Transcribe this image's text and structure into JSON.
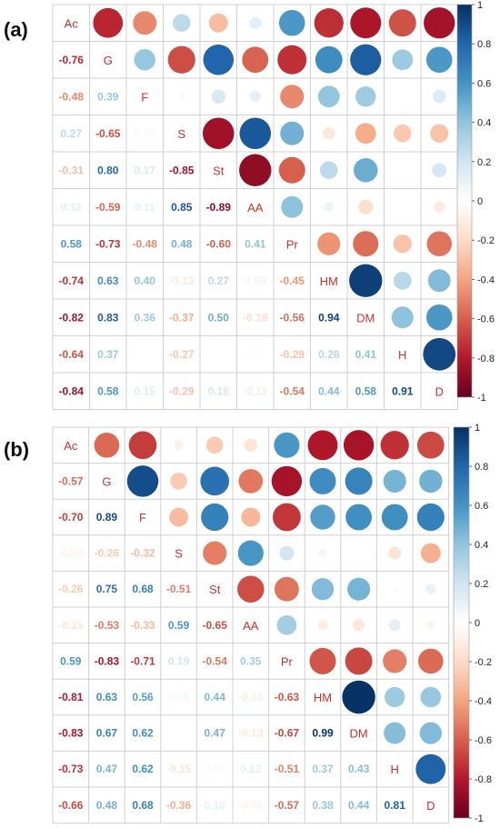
{
  "chart_data": [
    {
      "type": "heatmap",
      "panel_label": "(a)",
      "variables": [
        "Ac",
        "G",
        "F",
        "S",
        "St",
        "AA",
        "Pr",
        "HM",
        "DM",
        "H",
        "D"
      ],
      "lower_labels": [
        [
          "-0.76"
        ],
        [
          "-0.48",
          "0.39"
        ],
        [
          "0.27",
          "-0.65",
          "0.04"
        ],
        [
          "-0.31",
          "0.80",
          "0.17",
          "-0.85"
        ],
        [
          "0.12",
          "-0.59",
          "0.11",
          "0.85",
          "-0.89"
        ],
        [
          "0.58",
          "-0.73",
          "-0.48",
          "0.48",
          "-0.60",
          "0.41"
        ],
        [
          "-0.74",
          "0.63",
          "0.40",
          "-0.13",
          "0.27",
          "0.08",
          "-0.45"
        ],
        [
          "-0.82",
          "0.83",
          "0.36",
          "-0.37",
          "0.50",
          "-0.18",
          "-0.56",
          "0.94"
        ],
        [
          "-0.64",
          "0.37",
          "",
          "-0.27",
          "",
          "-0.01",
          "-0.29",
          "0.28",
          "0.41"
        ],
        [
          "-0.84",
          "0.58",
          "0.15",
          "-0.29",
          "0.18",
          "-0.11",
          "-0.54",
          "0.44",
          "0.58",
          "0.91"
        ]
      ],
      "upper_values": [
        [
          null,
          -0.76,
          -0.48,
          0.27,
          -0.31,
          0.12,
          0.58,
          -0.74,
          -0.82,
          -0.64,
          -0.84
        ],
        [
          null,
          null,
          0.39,
          -0.65,
          0.8,
          -0.59,
          -0.73,
          0.63,
          0.83,
          0.37,
          0.58
        ],
        [
          null,
          null,
          null,
          0.04,
          0.17,
          0.11,
          -0.48,
          0.4,
          0.36,
          0.0,
          0.15
        ],
        [
          null,
          null,
          null,
          null,
          -0.85,
          0.85,
          0.48,
          -0.13,
          -0.37,
          -0.27,
          -0.29
        ],
        [
          null,
          null,
          null,
          null,
          null,
          -0.89,
          -0.6,
          0.27,
          0.5,
          0.0,
          0.18
        ],
        [
          null,
          null,
          null,
          null,
          null,
          null,
          0.41,
          0.08,
          -0.18,
          -0.01,
          -0.11
        ],
        [
          null,
          null,
          null,
          null,
          null,
          null,
          null,
          -0.45,
          -0.56,
          -0.29,
          -0.54
        ],
        [
          null,
          null,
          null,
          null,
          null,
          null,
          null,
          null,
          0.94,
          0.28,
          0.44
        ],
        [
          null,
          null,
          null,
          null,
          null,
          null,
          null,
          null,
          null,
          0.41,
          0.58
        ],
        [
          null,
          null,
          null,
          null,
          null,
          null,
          null,
          null,
          null,
          null,
          0.91
        ]
      ],
      "colorbar_ticks": [
        "1",
        "0.8",
        "0.6",
        "0.4",
        "0.2",
        "0",
        "-0.2",
        "-0.4",
        "-0.6",
        "-0.8",
        "-1"
      ],
      "value_range": [
        -1,
        1
      ]
    },
    {
      "type": "heatmap",
      "panel_label": "(b)",
      "variables": [
        "Ac",
        "G",
        "F",
        "S",
        "St",
        "AA",
        "Pr",
        "HM",
        "DM",
        "H",
        "D"
      ],
      "lower_labels": [
        [
          "-0.57"
        ],
        [
          "-0.70",
          "0.89"
        ],
        [
          "-0.08",
          "-0.26",
          "-0.32"
        ],
        [
          "-0.26",
          "0.75",
          "0.68",
          "-0.51"
        ],
        [
          "-0.15",
          "-0.53",
          "-0.33",
          "0.59",
          "-0.65"
        ],
        [
          "0.59",
          "-0.83",
          "-0.71",
          "0.19",
          "-0.54",
          "0.35"
        ],
        [
          "-0.81",
          "0.63",
          "0.56",
          "0.06",
          "0.44",
          "-0.10",
          "-0.63"
        ],
        [
          "-0.83",
          "0.67",
          "0.62",
          "0.01",
          "0.47",
          "-0.13",
          "-0.67",
          "0.99"
        ],
        [
          "-0.73",
          "0.47",
          "0.62",
          "-0.15",
          "0.03",
          "0.12",
          "-0.51",
          "0.37",
          "0.43"
        ],
        [
          "-0.66",
          "0.48",
          "0.68",
          "-0.36",
          "0.10",
          "-0.06",
          "-0.57",
          "0.38",
          "0.44",
          "0.81"
        ]
      ],
      "upper_values": [
        [
          null,
          -0.57,
          -0.7,
          -0.08,
          -0.26,
          -0.15,
          0.59,
          -0.81,
          -0.83,
          -0.73,
          -0.66
        ],
        [
          null,
          null,
          0.89,
          -0.26,
          0.75,
          -0.53,
          -0.83,
          0.63,
          0.67,
          0.47,
          0.48
        ],
        [
          null,
          null,
          null,
          -0.32,
          0.68,
          -0.33,
          -0.71,
          0.56,
          0.62,
          0.62,
          0.68
        ],
        [
          null,
          null,
          null,
          null,
          -0.51,
          0.59,
          0.19,
          0.06,
          0.01,
          -0.15,
          -0.36
        ],
        [
          null,
          null,
          null,
          null,
          null,
          -0.65,
          -0.54,
          0.44,
          0.47,
          0.03,
          0.1
        ],
        [
          null,
          null,
          null,
          null,
          null,
          null,
          0.35,
          -0.1,
          -0.13,
          0.12,
          -0.06
        ],
        [
          null,
          null,
          null,
          null,
          null,
          null,
          null,
          -0.63,
          -0.67,
          -0.51,
          -0.57
        ],
        [
          null,
          null,
          null,
          null,
          null,
          null,
          null,
          null,
          0.99,
          0.37,
          0.38
        ],
        [
          null,
          null,
          null,
          null,
          null,
          null,
          null,
          null,
          null,
          0.43,
          0.44
        ],
        [
          null,
          null,
          null,
          null,
          null,
          null,
          null,
          null,
          null,
          null,
          0.81
        ]
      ],
      "colorbar_ticks": [
        "1",
        "0.8",
        "0.6",
        "0.4",
        "0.2",
        "0",
        "-0.2",
        "-0.4",
        "-0.6",
        "-0.8",
        "-1"
      ],
      "value_range": [
        -1,
        1
      ]
    }
  ]
}
